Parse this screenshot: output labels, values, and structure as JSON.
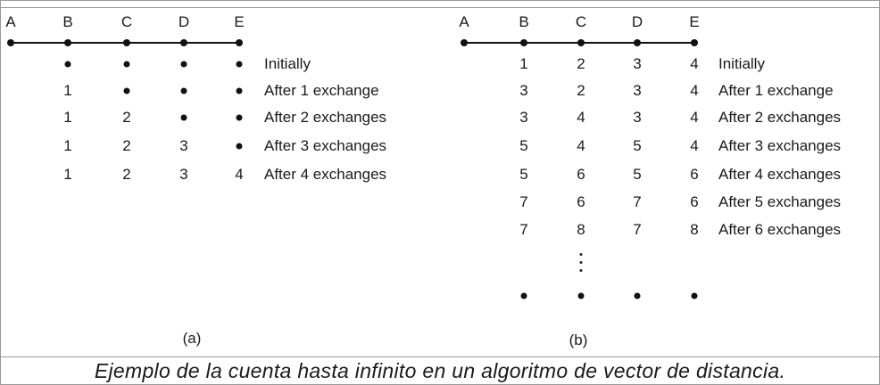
{
  "figure": {
    "caption": "Ejemplo de la cuenta hasta infinito en un algoritmo de vector de distancia.",
    "panels": [
      {
        "id": "a",
        "label": "(a)",
        "nodes": [
          "A",
          "B",
          "C",
          "D",
          "E"
        ],
        "rows": [
          {
            "values": [
              "•",
              "•",
              "•",
              "•"
            ],
            "label": "Initially"
          },
          {
            "values": [
              "1",
              "•",
              "•",
              "•"
            ],
            "label": "After 1 exchange"
          },
          {
            "values": [
              "1",
              "2",
              "•",
              "•"
            ],
            "label": "After 2 exchanges"
          },
          {
            "values": [
              "1",
              "2",
              "3",
              "•"
            ],
            "label": "After 3 exchanges"
          },
          {
            "values": [
              "1",
              "2",
              "3",
              "4"
            ],
            "label": "After 4 exchanges"
          }
        ]
      },
      {
        "id": "b",
        "label": "(b)",
        "nodes": [
          "A",
          "B",
          "C",
          "D",
          "E"
        ],
        "rows": [
          {
            "values": [
              "1",
              "2",
              "3",
              "4"
            ],
            "label": "Initially"
          },
          {
            "values": [
              "3",
              "2",
              "3",
              "4"
            ],
            "label": "After 1 exchange"
          },
          {
            "values": [
              "3",
              "4",
              "3",
              "4"
            ],
            "label": "After 2 exchanges"
          },
          {
            "values": [
              "5",
              "4",
              "5",
              "4"
            ],
            "label": "After 3 exchanges"
          },
          {
            "values": [
              "5",
              "6",
              "5",
              "6"
            ],
            "label": "After 4 exchanges"
          },
          {
            "values": [
              "7",
              "6",
              "7",
              "6"
            ],
            "label": "After 5 exchanges"
          },
          {
            "values": [
              "7",
              "8",
              "7",
              "8"
            ],
            "label": "After 6 exchanges"
          }
        ],
        "final_row": [
          "•",
          "•",
          "•",
          "•"
        ]
      }
    ]
  }
}
